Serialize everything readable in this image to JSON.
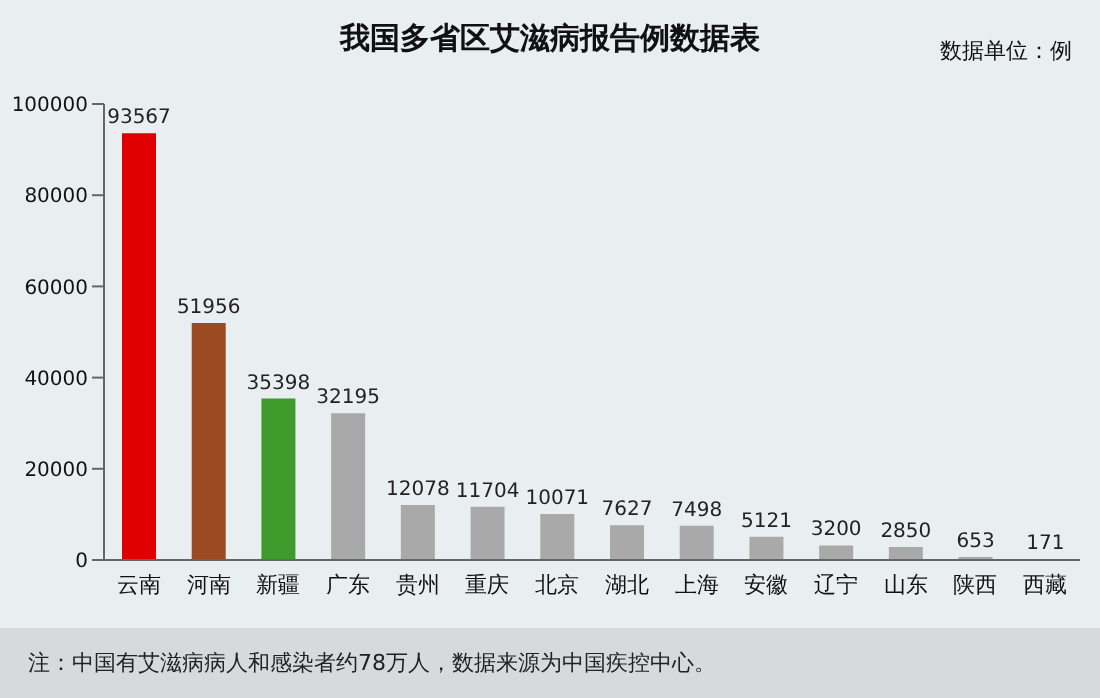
{
  "chart_data": {
    "type": "bar",
    "title": "我国多省区艾滋病报告例数据表",
    "subtitle": "数据单位：例",
    "categories": [
      "云南",
      "河南",
      "新疆",
      "广东",
      "贵州",
      "重庆",
      "北京",
      "湖北",
      "上海",
      "安徽",
      "辽宁",
      "山东",
      "陕西",
      "西藏"
    ],
    "values": [
      93567,
      51956,
      35398,
      32195,
      12078,
      11704,
      10071,
      7627,
      7498,
      5121,
      3200,
      2850,
      653,
      171
    ],
    "colors": [
      "#e00000",
      "#9c4a22",
      "#3f9a2c",
      "#a9a9a9",
      "#a9a9a9",
      "#a9a9a9",
      "#a9a9a9",
      "#a9a9a9",
      "#a9a9a9",
      "#a9a9a9",
      "#a9a9a9",
      "#a9a9a9",
      "#a9a9a9",
      "#a9a9a9"
    ],
    "ylim": [
      0,
      100000
    ],
    "yticks": [
      0,
      20000,
      40000,
      60000,
      80000,
      100000
    ],
    "data_labels": true,
    "annotations": [
      "注：中国有艾滋病病人和感染者约78万人，数据来源为中国疾控中心。"
    ]
  }
}
